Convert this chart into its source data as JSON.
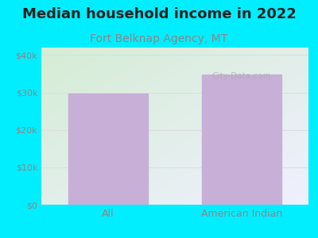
{
  "title": "Median household income in 2022",
  "subtitle": "Fort Belknap Agency, MT",
  "categories": [
    "All",
    "American Indian"
  ],
  "values": [
    29800,
    34800
  ],
  "bar_color": "#c8afd8",
  "background_outer": "#00eeff",
  "background_inner_topleft": "#d4edd4",
  "background_inner_bottomright": "#f0f0ff",
  "title_fontsize": 13,
  "title_color": "#222222",
  "subtitle_fontsize": 10,
  "subtitle_color": "#888888",
  "tick_label_color": "#888888",
  "axis_label_color": "#888888",
  "ylim": [
    0,
    42000
  ],
  "yticks": [
    0,
    10000,
    20000,
    30000,
    40000
  ],
  "ytick_labels": [
    "$0",
    "$10k",
    "$20k",
    "$30k",
    "$40k"
  ],
  "watermark": "City-Data.com",
  "grid_color": "#dddddd"
}
